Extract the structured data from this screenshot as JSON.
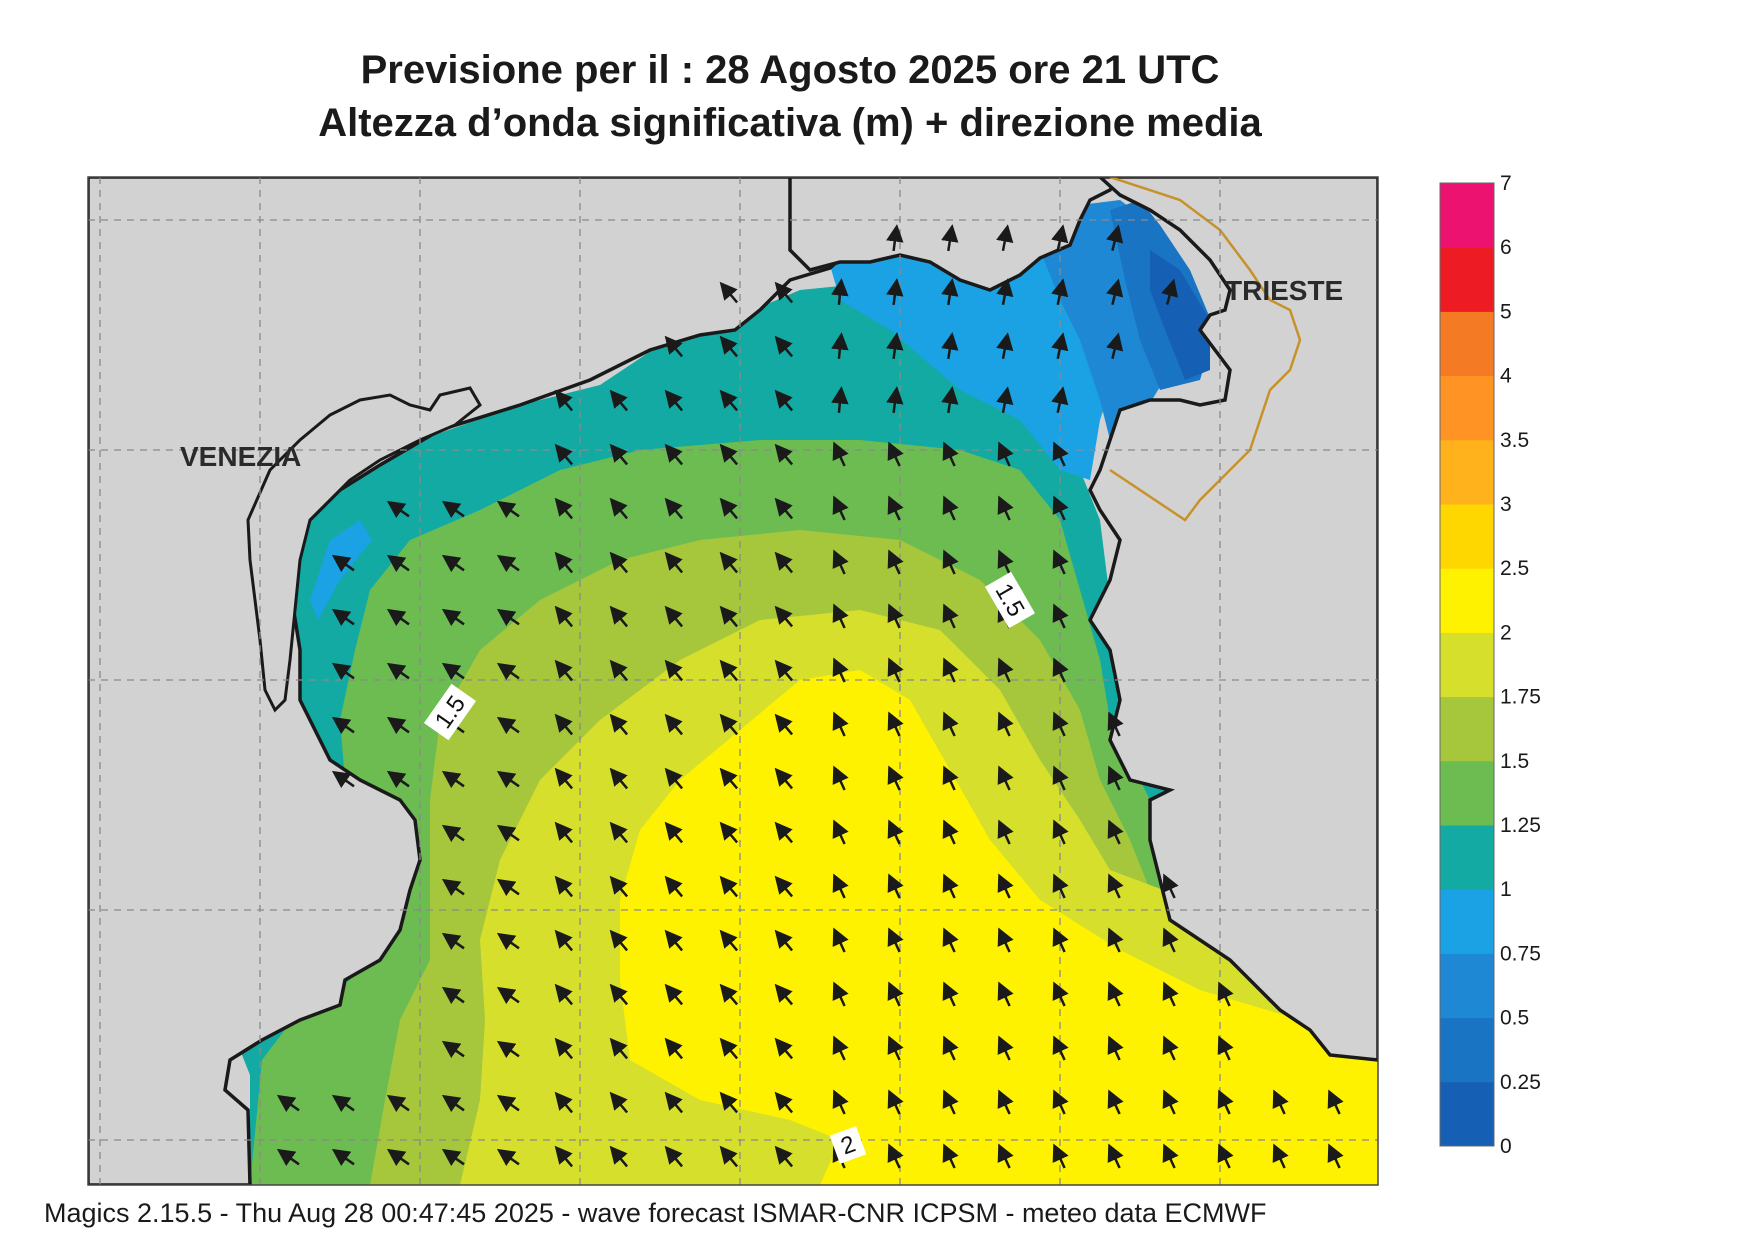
{
  "title_line1": "Previsione per il  :  28   Agosto  2025   ore 21 UTC",
  "title_line2": "Altezza d’onda significativa (m) + direzione media",
  "footer": "Magics 2.15.5 - Thu Aug 28 00:47:45 2025 - wave forecast  ISMAR-CNR  ICPSM - meteo data   ECMWF",
  "cities": {
    "venezia": "VENEZIA",
    "trieste": "TRIESTE"
  },
  "contour_labels": [
    "1.5",
    "1.5",
    "2"
  ],
  "colorbar": {
    "levels": [
      "0",
      "0.25",
      "0.5",
      "0.75",
      "1",
      "1.25",
      "1.5",
      "1.75",
      "2",
      "2.5",
      "3",
      "3.5",
      "4",
      "5",
      "6",
      "7"
    ],
    "colors": [
      "#1560b4",
      "#1a74c4",
      "#1e88d4",
      "#1aa2e4",
      "#12aaa2",
      "#6cbc52",
      "#a6c63c",
      "#d6e02c",
      "#fff200",
      "#ffd700",
      "#ffb21c",
      "#ff9324",
      "#f57a24",
      "#ed1c24",
      "#ec1270"
    ]
  },
  "map_data": {
    "field": "significant wave height (m) + mean wave direction",
    "arrow_direction": "towards north-west",
    "colors": {
      "land": "#d2d2d2",
      "coast": "#1a1a1a",
      "border": "#c8922a",
      "grid": "#8a8a8a"
    }
  }
}
